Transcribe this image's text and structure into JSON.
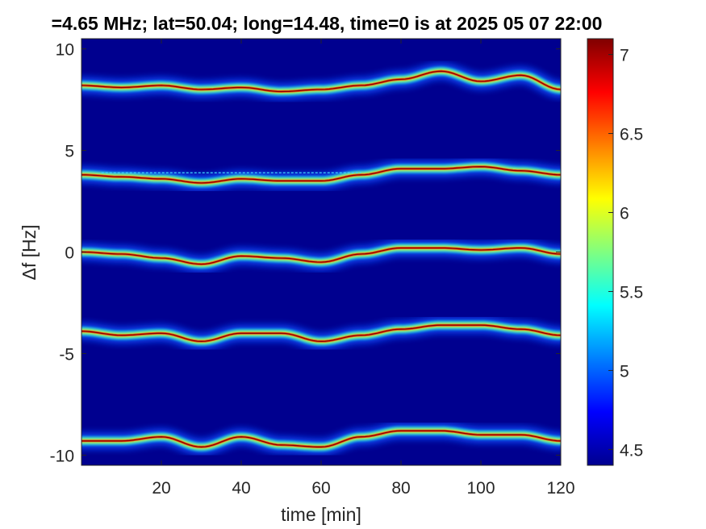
{
  "chart_data": {
    "type": "heatmap",
    "title": "=4.65 MHz;  lat=50.04; long=14.48, time=0 is at 2025 05 07 22:00",
    "xlabel": "time [min]",
    "ylabel": "Δf [Hz]",
    "xlim": [
      0,
      120
    ],
    "ylim": [
      -10.5,
      10.5
    ],
    "x_ticks": [
      20,
      40,
      60,
      80,
      100,
      120
    ],
    "y_ticks": [
      10,
      5,
      0,
      -5,
      -10
    ],
    "x_tick_labels": [
      "20",
      "40",
      "60",
      "80",
      "100",
      "120"
    ],
    "y_tick_labels": [
      "10",
      "5",
      "0",
      "-5",
      "-10"
    ],
    "colorbar": {
      "range": [
        4.4,
        7.1
      ],
      "ticks": [
        7,
        6.5,
        6,
        5.5,
        5,
        4.5
      ],
      "tick_labels": [
        "7",
        "6.5",
        "6",
        "5.5",
        "5",
        "4.5"
      ],
      "colormap": "jet"
    },
    "background_color": "#00008f",
    "grid": false,
    "series": [
      {
        "name": "",
        "x": [
          0,
          10,
          20,
          30,
          40,
          50,
          60,
          70,
          80,
          90,
          100,
          110,
          120
        ],
        "y": [
          8.2,
          8.1,
          8.2,
          8.0,
          8.1,
          7.9,
          8.0,
          8.2,
          8.5,
          8.9,
          8.4,
          8.7,
          8.0
        ]
      },
      {
        "name": "",
        "x": [
          0,
          10,
          20,
          30,
          40,
          50,
          60,
          70,
          80,
          90,
          100,
          110,
          120
        ],
        "y": [
          3.8,
          3.7,
          3.6,
          3.4,
          3.6,
          3.5,
          3.5,
          3.8,
          4.1,
          4.1,
          4.2,
          4.0,
          3.8
        ]
      },
      {
        "name": "",
        "x": [
          0,
          10,
          20,
          30,
          40,
          50,
          60,
          70,
          80,
          90,
          100,
          110,
          120
        ],
        "y": [
          0.0,
          -0.1,
          -0.3,
          -0.6,
          -0.2,
          -0.3,
          -0.5,
          -0.1,
          0.2,
          0.2,
          0.1,
          0.2,
          -0.1
        ]
      },
      {
        "name": "",
        "x": [
          0,
          10,
          20,
          30,
          40,
          50,
          60,
          70,
          80,
          90,
          100,
          110,
          120
        ],
        "y": [
          -3.9,
          -4.1,
          -4.0,
          -4.4,
          -4.0,
          -4.0,
          -4.4,
          -4.1,
          -3.8,
          -3.6,
          -3.6,
          -3.8,
          -4.1
        ]
      },
      {
        "name": "",
        "x": [
          0,
          10,
          20,
          30,
          40,
          50,
          60,
          70,
          80,
          90,
          100,
          110,
          120
        ],
        "y": [
          -9.3,
          -9.3,
          -9.1,
          -9.6,
          -9.1,
          -9.5,
          -9.6,
          -9.1,
          -8.8,
          -8.8,
          -9.0,
          -9.0,
          -9.3
        ]
      }
    ],
    "reference_line": {
      "y": 3.9,
      "x_range": [
        5,
        70
      ]
    }
  }
}
